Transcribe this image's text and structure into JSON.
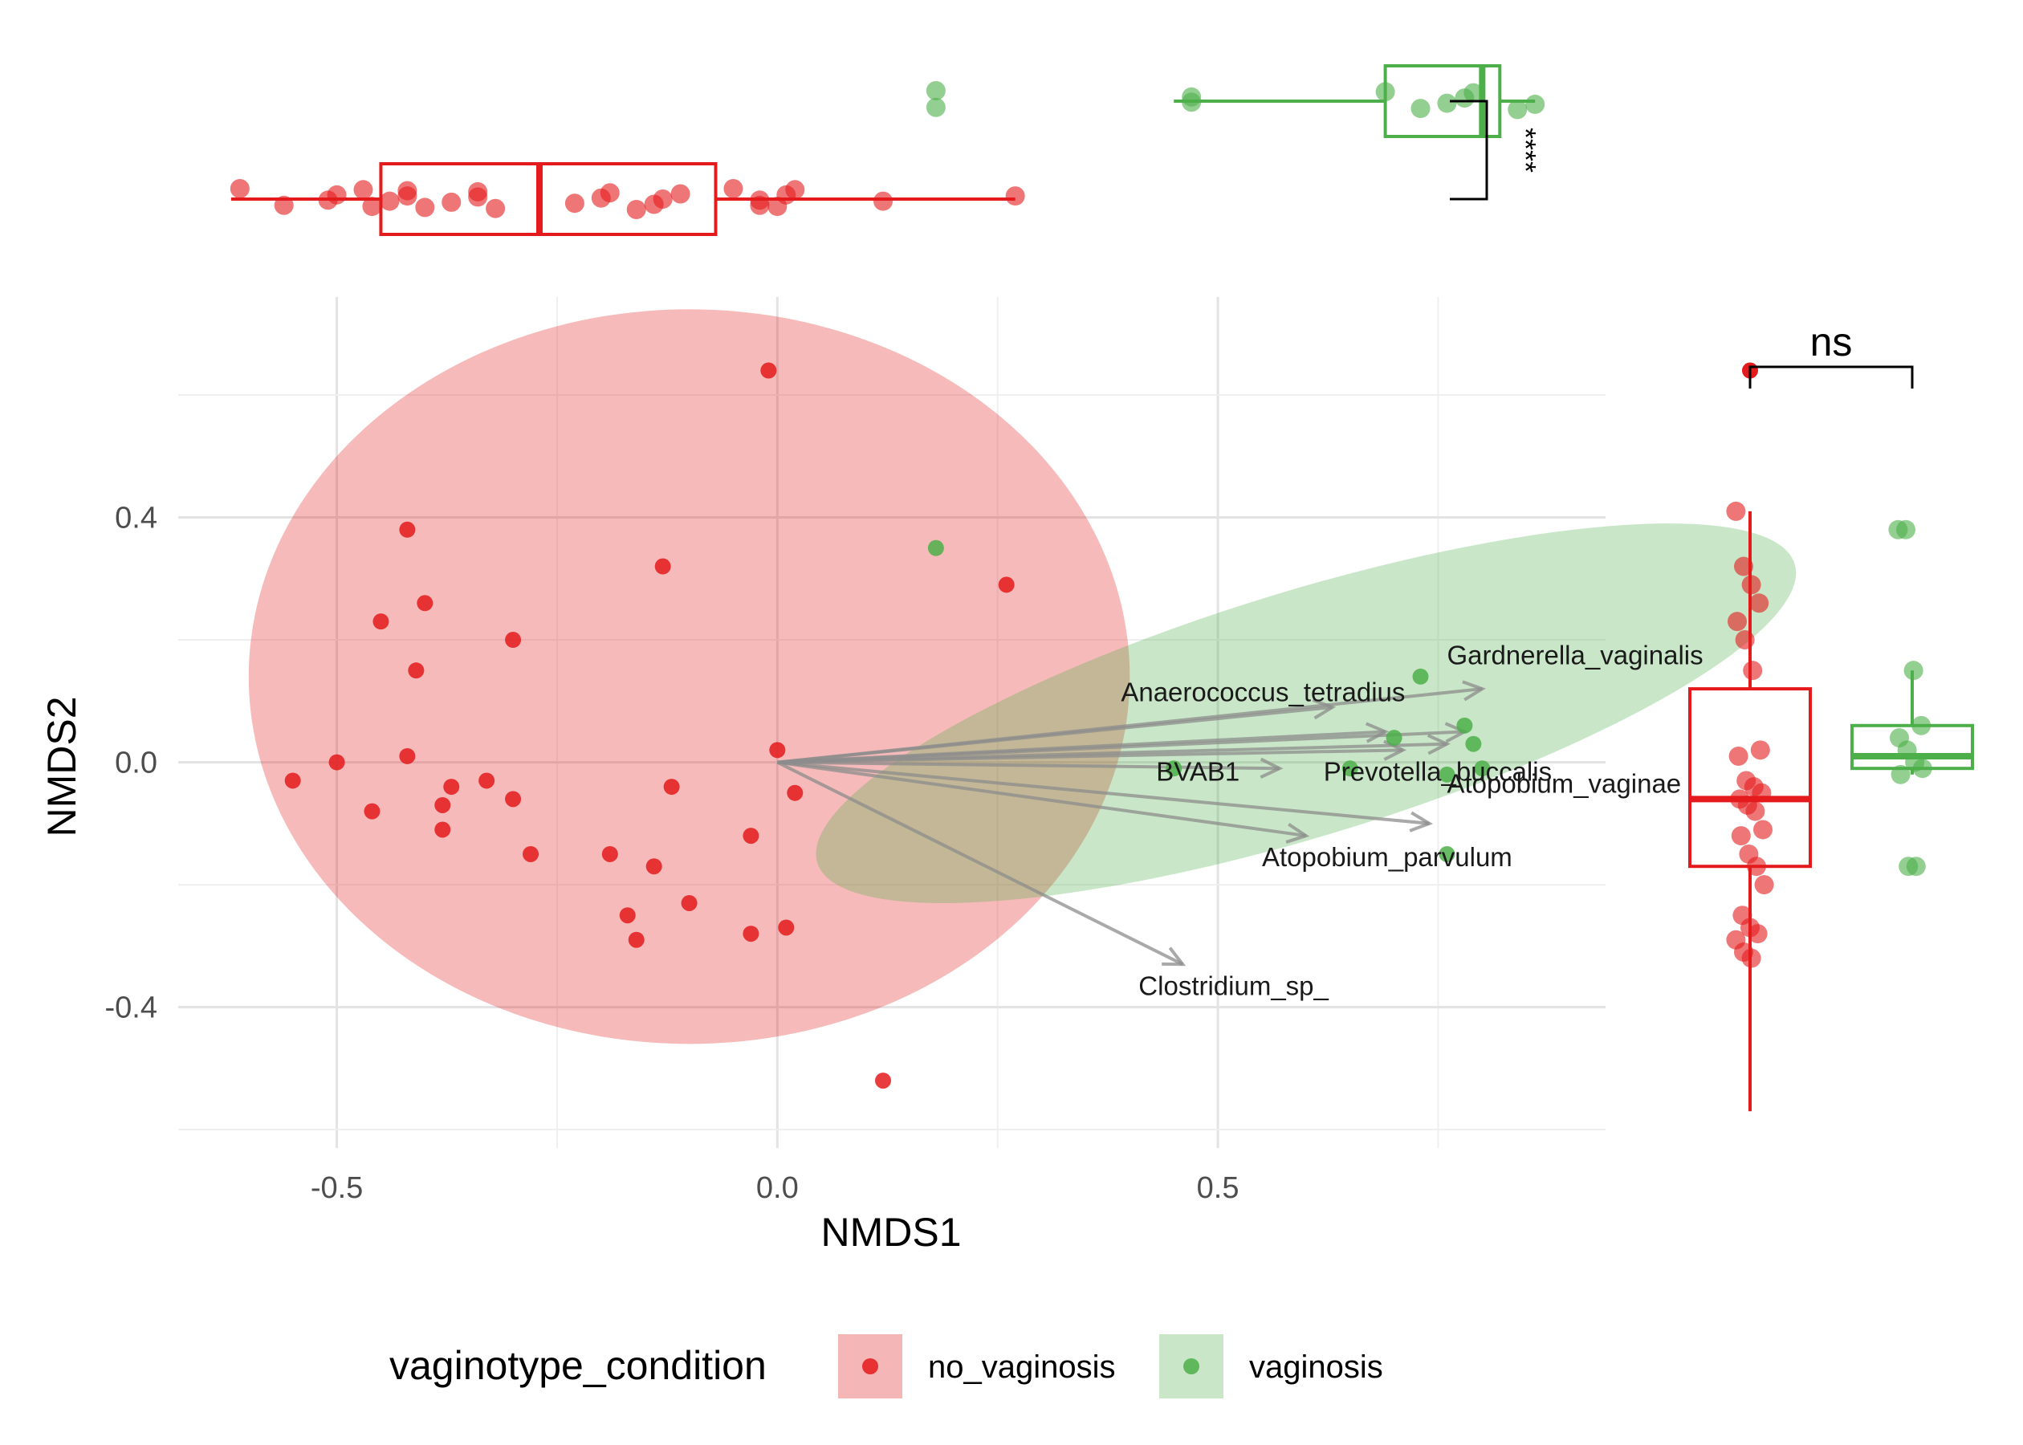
{
  "chart_data": {
    "type": "scatter",
    "colors": {
      "no_vaginosis": "#e41a1c",
      "vaginosis": "#4daf4a",
      "arrow": "#8c8c8c",
      "grid": "#e5e5e5"
    },
    "axes": {
      "xlabel": "NMDS1",
      "ylabel": "NMDS2",
      "xlim": [
        -0.68,
        0.94
      ],
      "ylim": [
        -0.63,
        0.76
      ],
      "xticks": [
        -0.5,
        0.0,
        0.5
      ],
      "xtick_labels": [
        "-0.5",
        "0.0",
        "0.5"
      ],
      "yticks": [
        -0.4,
        0.0,
        0.4
      ],
      "ytick_labels": [
        "-0.4",
        "0.0",
        "0.4"
      ],
      "grid": true
    },
    "legend": {
      "title": "vaginotype_condition",
      "position": "bottom",
      "entries": [
        "no_vaginosis",
        "vaginosis"
      ]
    },
    "series": [
      {
        "name": "no_vaginosis",
        "points": [
          [
            -0.01,
            0.64
          ],
          [
            -0.42,
            0.38
          ],
          [
            -0.13,
            0.32
          ],
          [
            -0.4,
            0.26
          ],
          [
            -0.45,
            0.23
          ],
          [
            -0.3,
            0.2
          ],
          [
            -0.41,
            0.15
          ],
          [
            -0.42,
            0.01
          ],
          [
            0.0,
            0.02
          ],
          [
            -0.5,
            0.0
          ],
          [
            -0.55,
            -0.03
          ],
          [
            -0.33,
            -0.03
          ],
          [
            -0.37,
            -0.04
          ],
          [
            -0.12,
            -0.04
          ],
          [
            -0.3,
            -0.06
          ],
          [
            -0.38,
            -0.07
          ],
          [
            0.02,
            -0.05
          ],
          [
            -0.46,
            -0.08
          ],
          [
            -0.38,
            -0.11
          ],
          [
            -0.03,
            -0.12
          ],
          [
            -0.28,
            -0.15
          ],
          [
            -0.19,
            -0.15
          ],
          [
            -0.14,
            -0.17
          ],
          [
            -0.1,
            -0.23
          ],
          [
            -0.17,
            -0.25
          ],
          [
            -0.03,
            -0.28
          ],
          [
            0.01,
            -0.27
          ],
          [
            -0.16,
            -0.29
          ],
          [
            0.26,
            0.29
          ],
          [
            0.12,
            -0.52
          ]
        ]
      },
      {
        "name": "vaginosis",
        "points": [
          [
            0.18,
            0.35
          ],
          [
            0.73,
            0.14
          ],
          [
            0.78,
            0.06
          ],
          [
            0.7,
            0.04
          ],
          [
            0.79,
            0.03
          ],
          [
            0.65,
            -0.01
          ],
          [
            0.8,
            -0.01
          ],
          [
            0.45,
            -0.01
          ],
          [
            0.76,
            -0.02
          ],
          [
            0.76,
            -0.15
          ]
        ]
      }
    ],
    "ellipses": [
      {
        "group": "no_vaginosis",
        "center": [
          -0.1,
          0.14
        ],
        "semi_axes": [
          0.5,
          0.6
        ],
        "angle_deg": 0
      },
      {
        "group": "vaginosis",
        "center": [
          0.6,
          0.08
        ],
        "semi_axes": [
          0.58,
          0.2
        ],
        "angle_deg": -17
      }
    ],
    "vectors": [
      {
        "name": "Gardnerella_vaginalis",
        "x": 0.8,
        "y": 0.12,
        "label_x": 0.76,
        "label_y": 0.16
      },
      {
        "name": "Anaerococcus_tetradius",
        "x": 0.63,
        "y": 0.09,
        "label_x": 0.39,
        "label_y": 0.1
      },
      {
        "name": "BVAB1",
        "x": 0.57,
        "y": -0.01,
        "label_x": 0.43,
        "label_y": -0.03
      },
      {
        "name": "Prevotella_buccalis",
        "x": 0.71,
        "y": 0.02,
        "label_x": 0.62,
        "label_y": -0.03
      },
      {
        "name": "Atopobium_vaginae",
        "x": 0.74,
        "y": -0.1,
        "label_x": 0.76,
        "label_y": -0.05
      },
      {
        "name": "Atopobium_parvulum",
        "x": 0.6,
        "y": -0.12,
        "label_x": 0.55,
        "label_y": -0.17
      },
      {
        "name": "Clostridium_sp_",
        "x": 0.46,
        "y": -0.33,
        "label_x": 0.41,
        "label_y": -0.38
      },
      {
        "name": "",
        "x": 0.78,
        "y": 0.05
      },
      {
        "name": "",
        "x": 0.76,
        "y": 0.03
      },
      {
        "name": "",
        "x": 0.69,
        "y": 0.05
      }
    ],
    "marginal_top": {
      "axis": "NMDS1",
      "significance": "****",
      "boxes": [
        {
          "group": "no_vaginosis",
          "whisker_low": -0.62,
          "q1": -0.45,
          "median": -0.27,
          "q3": -0.07,
          "whisker_high": 0.27,
          "points": [
            -0.61,
            -0.56,
            -0.51,
            -0.5,
            -0.47,
            -0.46,
            -0.44,
            -0.42,
            -0.42,
            -0.4,
            -0.37,
            -0.34,
            -0.34,
            -0.32,
            -0.23,
            -0.2,
            -0.19,
            -0.16,
            -0.14,
            -0.13,
            -0.11,
            -0.05,
            -0.02,
            -0.02,
            0.01,
            0.02,
            0.0,
            0.12,
            0.27
          ]
        },
        {
          "group": "vaginosis",
          "whisker_low": 0.45,
          "q1": 0.69,
          "median": 0.8,
          "q3": 0.82,
          "whisker_high": 0.86,
          "points": [
            0.18,
            0.18,
            0.47,
            0.47,
            0.69,
            0.73,
            0.76,
            0.78,
            0.79,
            0.84,
            0.86
          ]
        }
      ]
    },
    "marginal_right": {
      "axis": "NMDS2",
      "significance": "ns",
      "boxes": [
        {
          "group": "no_vaginosis",
          "whisker_low": -0.57,
          "q1": -0.17,
          "median": -0.06,
          "q3": 0.12,
          "whisker_high": 0.41,
          "outliers": [
            0.64
          ],
          "points": [
            0.41,
            0.32,
            0.29,
            0.26,
            0.23,
            0.2,
            0.15,
            0.02,
            0.01,
            -0.03,
            -0.04,
            -0.05,
            -0.06,
            -0.07,
            -0.08,
            -0.11,
            -0.12,
            -0.15,
            -0.17,
            -0.2,
            -0.25,
            -0.27,
            -0.28,
            -0.29,
            -0.31,
            -0.32
          ]
        },
        {
          "group": "vaginosis",
          "whisker_low": -0.02,
          "q1": -0.01,
          "median": 0.01,
          "q3": 0.06,
          "whisker_high": 0.15,
          "points": [
            0.38,
            0.38,
            0.15,
            0.06,
            0.04,
            0.02,
            0.0,
            -0.01,
            -0.02,
            -0.17,
            -0.17
          ]
        }
      ]
    }
  }
}
